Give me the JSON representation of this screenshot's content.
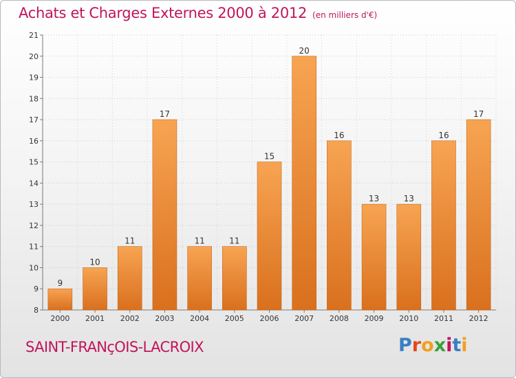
{
  "title": "Achats et Charges Externes 2000 à 2012",
  "unit_note": "(en milliers d'€)",
  "town": "SAINT-FRANçOIS-LACROIX",
  "logo": {
    "text": "Proxiti",
    "letter_colors": [
      "#3a7fc4",
      "#e8461c",
      "#f0a020",
      "#3aa03a",
      "#c0145a",
      "#3a7fc4",
      "#f0a020"
    ]
  },
  "colors": {
    "accent": "#c0145a",
    "bar_light": "#f7a452",
    "bar_dark": "#d9701e"
  },
  "chart_data": {
    "type": "bar",
    "categories": [
      "2000",
      "2001",
      "2002",
      "2003",
      "2004",
      "2005",
      "2006",
      "2007",
      "2008",
      "2009",
      "2010",
      "2011",
      "2012"
    ],
    "values": [
      9,
      10,
      11,
      17,
      11,
      11,
      15,
      20,
      16,
      13,
      13,
      16,
      17
    ],
    "data_labels": [
      "9",
      "10",
      "11",
      "17",
      "11",
      "11",
      "15",
      "20",
      "16",
      "13",
      "13",
      "16",
      "17"
    ],
    "title": "Achats et Charges Externes 2000 à 2012",
    "ylim": [
      8,
      21
    ],
    "yticks": [
      8,
      9,
      10,
      11,
      12,
      13,
      14,
      15,
      16,
      17,
      18,
      19,
      20,
      21
    ],
    "grid": true,
    "legend": "none"
  }
}
